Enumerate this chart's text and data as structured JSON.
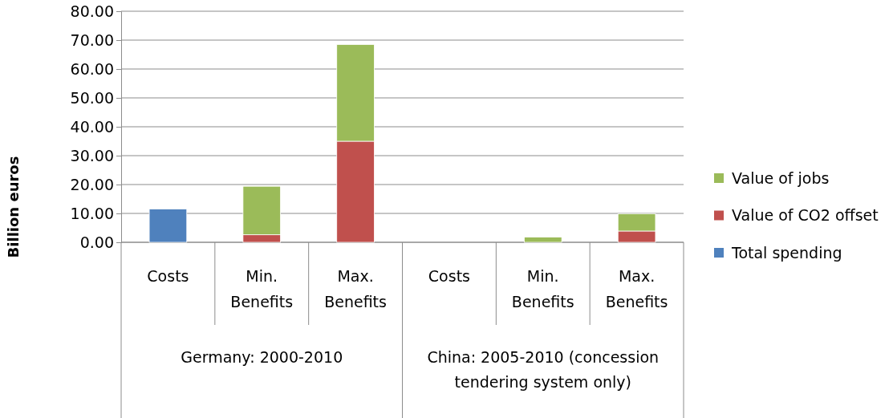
{
  "chart_data": {
    "type": "bar",
    "stacked": true,
    "ylabel": "Billion euros",
    "categories": [
      "Costs",
      "Min. Benefits",
      "Max. Benefits",
      "Costs",
      "Min. Benefits",
      "Max. Benefits"
    ],
    "series": [
      {
        "name": "Total spending",
        "color": "#4f81bd",
        "values": [
          11.5,
          null,
          null,
          null,
          null,
          null
        ]
      },
      {
        "name": "Value of CO2 offset",
        "color": "#c0504d",
        "values": [
          null,
          2.6,
          35.0,
          null,
          null,
          3.9
        ]
      },
      {
        "name": "Value of jobs",
        "color": "#9bbb59",
        "values": [
          null,
          16.8,
          33.5,
          null,
          1.8,
          6.0
        ]
      }
    ],
    "ylim": [
      0,
      80
    ],
    "yticks": [
      {
        "value": 0,
        "label": "0.00"
      },
      {
        "value": 10,
        "label": "10.00"
      },
      {
        "value": 20,
        "label": "20.00"
      },
      {
        "value": 30,
        "label": "30.00"
      },
      {
        "value": 40,
        "label": "40.00"
      },
      {
        "value": 50,
        "label": "50.00"
      },
      {
        "value": 60,
        "label": "60.00"
      },
      {
        "value": 70,
        "label": "70.00"
      },
      {
        "value": 80,
        "label": "80.00"
      }
    ],
    "grid": "y",
    "legend": "right",
    "annotations": [
      "Germany: 2000-2010",
      "China: 2005-2010 (concession tendering system only)"
    ]
  }
}
